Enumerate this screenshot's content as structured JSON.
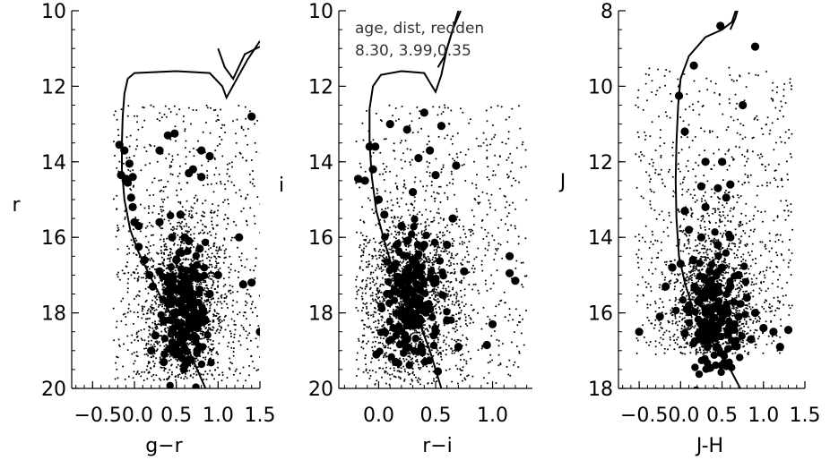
{
  "chart_data": [
    {
      "type": "scatter",
      "xlabel": "g−r",
      "ylabel": "r",
      "xlim": [
        -0.75,
        1.5
      ],
      "ylim": [
        20,
        10
      ],
      "y_inverted": true,
      "xticks": [
        -0.5,
        0.0,
        0.5,
        1.0,
        1.5
      ],
      "xtick_labels": [
        "−0.5",
        "0.0",
        "0.5",
        "1.0",
        "1.5"
      ],
      "xtick_merged_label": "−0.50.0",
      "yticks": [
        10,
        12,
        14,
        16,
        18,
        20
      ],
      "ytick_labels": [
        "10",
        "12",
        "14",
        "16",
        "18",
        "20"
      ],
      "point_color": "#000000",
      "isochrone": [
        [
          0.85,
          20.0
        ],
        [
          0.65,
          19.0
        ],
        [
          0.48,
          18.2
        ],
        [
          0.32,
          17.6
        ],
        [
          0.18,
          17.0
        ],
        [
          0.05,
          16.4
        ],
        [
          -0.05,
          15.8
        ],
        [
          -0.12,
          15.0
        ],
        [
          -0.15,
          14.2
        ],
        [
          -0.15,
          13.5
        ],
        [
          -0.14,
          12.8
        ],
        [
          -0.12,
          12.2
        ],
        [
          -0.08,
          11.8
        ],
        [
          0.0,
          11.65
        ],
        [
          0.5,
          11.6
        ],
        [
          0.9,
          11.65
        ],
        [
          1.05,
          12.0
        ],
        [
          1.1,
          12.3
        ],
        [
          1.2,
          11.9
        ],
        [
          1.35,
          11.3
        ],
        [
          1.5,
          10.8
        ]
      ],
      "isochrone_branch": [
        [
          1.0,
          11.0
        ],
        [
          1.08,
          11.5
        ],
        [
          1.18,
          11.8
        ],
        [
          1.32,
          11.15
        ],
        [
          1.5,
          10.95
        ]
      ],
      "members": [
        [
          -0.18,
          13.55
        ],
        [
          -0.12,
          13.7
        ],
        [
          -0.16,
          14.35
        ],
        [
          -0.1,
          14.45
        ],
        [
          -0.08,
          14.55
        ],
        [
          -0.06,
          14.05
        ],
        [
          -0.02,
          14.4
        ],
        [
          -0.04,
          14.95
        ],
        [
          -0.02,
          15.2
        ],
        [
          0.0,
          15.6
        ],
        [
          0.05,
          15.7
        ],
        [
          0.05,
          16.25
        ],
        [
          0.12,
          16.6
        ],
        [
          0.18,
          17.0
        ],
        [
          0.22,
          17.3
        ],
        [
          0.4,
          13.3
        ],
        [
          0.48,
          13.25
        ],
        [
          0.3,
          13.7
        ],
        [
          0.7,
          14.2
        ],
        [
          0.65,
          14.3
        ],
        [
          0.8,
          13.7
        ],
        [
          0.9,
          13.85
        ],
        [
          0.8,
          14.4
        ],
        [
          0.55,
          15.4
        ],
        [
          0.3,
          15.6
        ],
        [
          0.45,
          16.0
        ],
        [
          0.6,
          16.0
        ],
        [
          0.65,
          16.1
        ],
        [
          0.5,
          16.6
        ],
        [
          0.7,
          16.9
        ],
        [
          0.4,
          17.2
        ],
        [
          0.55,
          17.4
        ],
        [
          0.45,
          17.7
        ],
        [
          0.6,
          17.6
        ],
        [
          0.7,
          17.5
        ],
        [
          0.5,
          18.0
        ],
        [
          0.65,
          18.1
        ],
        [
          0.35,
          18.2
        ],
        [
          0.75,
          18.4
        ],
        [
          0.55,
          18.7
        ],
        [
          0.85,
          18.2
        ],
        [
          0.9,
          17.5
        ],
        [
          1.0,
          17.0
        ],
        [
          1.25,
          16.0
        ],
        [
          1.3,
          17.25
        ],
        [
          1.4,
          17.2
        ],
        [
          1.5,
          18.5
        ],
        [
          1.4,
          12.8
        ],
        [
          0.25,
          18.6
        ],
        [
          0.2,
          19.0
        ],
        [
          0.35,
          19.3
        ],
        [
          0.6,
          19.4
        ],
        [
          0.75,
          19.0
        ],
        [
          0.3,
          16.9
        ],
        [
          0.78,
          16.3
        ]
      ],
      "field_region": {
        "x": [
          -0.25,
          1.55
        ],
        "y": [
          12.5,
          19.8
        ],
        "peak": [
          0.6,
          17.8
        ]
      }
    },
    {
      "type": "scatter",
      "xlabel": "r−i",
      "ylabel": "i",
      "xlim": [
        -0.35,
        1.35
      ],
      "ylim": [
        20,
        10
      ],
      "y_inverted": true,
      "xticks": [
        0.0,
        0.5,
        1.0
      ],
      "xtick_labels": [
        "0.0",
        "0.5",
        "1.0"
      ],
      "yticks": [
        10,
        12,
        14,
        16,
        18,
        20
      ],
      "ytick_labels": [
        "10",
        "12",
        "14",
        "16",
        "18",
        "20"
      ],
      "point_color": "#000000",
      "annotation_lines": [
        "age, dist, redden",
        "8.30, 3.99,0.35"
      ],
      "isochrone": [
        [
          0.55,
          20.0
        ],
        [
          0.45,
          19.0
        ],
        [
          0.35,
          18.2
        ],
        [
          0.22,
          17.5
        ],
        [
          0.12,
          16.8
        ],
        [
          0.05,
          16.1
        ],
        [
          -0.02,
          15.3
        ],
        [
          -0.06,
          14.4
        ],
        [
          -0.08,
          13.5
        ],
        [
          -0.08,
          12.6
        ],
        [
          -0.05,
          12.0
        ],
        [
          0.02,
          11.7
        ],
        [
          0.2,
          11.6
        ],
        [
          0.4,
          11.65
        ],
        [
          0.45,
          11.9
        ],
        [
          0.5,
          12.15
        ],
        [
          0.55,
          11.7
        ],
        [
          0.6,
          11.0
        ],
        [
          0.7,
          10.0
        ]
      ],
      "isochrone_branch": [
        [
          0.52,
          11.5
        ],
        [
          0.58,
          11.2
        ],
        [
          0.65,
          10.5
        ],
        [
          0.72,
          10.0
        ]
      ],
      "members": [
        [
          -0.18,
          14.45
        ],
        [
          -0.12,
          14.5
        ],
        [
          -0.05,
          14.2
        ],
        [
          -0.08,
          13.6
        ],
        [
          -0.03,
          13.6
        ],
        [
          0.0,
          15.0
        ],
        [
          0.05,
          15.4
        ],
        [
          0.1,
          13.0
        ],
        [
          0.25,
          13.15
        ],
        [
          0.4,
          12.7
        ],
        [
          0.55,
          13.05
        ],
        [
          0.45,
          13.7
        ],
        [
          0.35,
          13.9
        ],
        [
          0.5,
          14.35
        ],
        [
          0.68,
          14.1
        ],
        [
          0.3,
          14.8
        ],
        [
          0.2,
          15.7
        ],
        [
          0.25,
          16.1
        ],
        [
          0.4,
          16.2
        ],
        [
          0.6,
          16.2
        ],
        [
          0.65,
          15.5
        ],
        [
          0.15,
          16.7
        ],
        [
          0.35,
          17.0
        ],
        [
          0.5,
          17.2
        ],
        [
          0.1,
          17.5
        ],
        [
          0.3,
          17.7
        ],
        [
          0.45,
          17.9
        ],
        [
          0.2,
          18.1
        ],
        [
          0.35,
          18.3
        ],
        [
          0.05,
          18.5
        ],
        [
          0.25,
          18.7
        ],
        [
          0.5,
          18.5
        ],
        [
          0.6,
          18.2
        ],
        [
          0.75,
          16.9
        ],
        [
          0.7,
          18.9
        ],
        [
          0.95,
          18.85
        ],
        [
          1.0,
          18.3
        ],
        [
          1.15,
          16.5
        ],
        [
          1.15,
          16.95
        ],
        [
          1.2,
          17.15
        ],
        [
          -0.02,
          19.1
        ],
        [
          0.15,
          19.3
        ],
        [
          0.52,
          19.55
        ],
        [
          0.38,
          19.0
        ]
      ],
      "field_region": {
        "x": [
          -0.2,
          1.3
        ],
        "y": [
          12.5,
          19.9
        ],
        "peak": [
          0.28,
          17.6
        ]
      }
    },
    {
      "type": "scatter",
      "xlabel": "J-H",
      "ylabel": "J",
      "xlim": [
        -0.75,
        1.5
      ],
      "ylim": [
        18,
        8
      ],
      "y_inverted": true,
      "xticks": [
        -0.5,
        0.0,
        0.5,
        1.0,
        1.5
      ],
      "xtick_labels": [
        "−0.5",
        "0.0",
        "0.5",
        "1.0",
        "1.5"
      ],
      "xtick_merged_label": "−0.50.0",
      "yticks": [
        8,
        10,
        12,
        14,
        16,
        18
      ],
      "ytick_labels": [
        "8",
        "10",
        "12",
        "14",
        "16",
        "18"
      ],
      "point_color": "#000000",
      "isochrone": [
        [
          0.72,
          18.0
        ],
        [
          0.6,
          17.5
        ],
        [
          0.45,
          17.0
        ],
        [
          0.3,
          16.5
        ],
        [
          0.15,
          15.9
        ],
        [
          0.05,
          15.2
        ],
        [
          -0.02,
          14.5
        ],
        [
          -0.05,
          13.5
        ],
        [
          -0.06,
          12.5
        ],
        [
          -0.05,
          11.5
        ],
        [
          -0.03,
          10.5
        ],
        [
          0.0,
          9.8
        ],
        [
          0.1,
          9.2
        ],
        [
          0.3,
          8.7
        ],
        [
          0.5,
          8.5
        ],
        [
          0.62,
          8.3
        ],
        [
          0.68,
          7.9
        ]
      ],
      "isochrone_branch": [
        [
          0.6,
          8.5
        ],
        [
          0.66,
          8.2
        ],
        [
          0.7,
          7.9
        ]
      ],
      "members": [
        [
          0.48,
          8.4
        ],
        [
          0.9,
          8.95
        ],
        [
          0.16,
          9.45
        ],
        [
          -0.02,
          10.25
        ],
        [
          0.75,
          10.5
        ],
        [
          0.05,
          11.2
        ],
        [
          0.3,
          12.0
        ],
        [
          0.5,
          12.0
        ],
        [
          0.25,
          12.65
        ],
        [
          0.45,
          12.7
        ],
        [
          0.6,
          12.6
        ],
        [
          0.55,
          12.95
        ],
        [
          0.05,
          13.3
        ],
        [
          0.3,
          13.2
        ],
        [
          0.1,
          13.8
        ],
        [
          0.25,
          14.0
        ],
        [
          0.45,
          14.2
        ],
        [
          0.6,
          14.0
        ],
        [
          0.15,
          14.6
        ],
        [
          0.0,
          14.7
        ],
        [
          -0.1,
          14.8
        ],
        [
          0.35,
          14.9
        ],
        [
          0.5,
          14.8
        ],
        [
          0.7,
          15.0
        ],
        [
          -0.18,
          15.3
        ],
        [
          0.2,
          15.4
        ],
        [
          0.4,
          15.5
        ],
        [
          0.6,
          15.3
        ],
        [
          0.8,
          15.6
        ],
        [
          0.1,
          15.8
        ],
        [
          0.3,
          16.0
        ],
        [
          0.5,
          15.9
        ],
        [
          0.7,
          16.1
        ],
        [
          0.9,
          16.0
        ],
        [
          0.25,
          16.3
        ],
        [
          0.45,
          16.4
        ],
        [
          0.65,
          16.3
        ],
        [
          1.0,
          16.4
        ],
        [
          1.12,
          16.5
        ],
        [
          1.3,
          16.45
        ],
        [
          -0.5,
          16.5
        ],
        [
          -0.25,
          16.1
        ],
        [
          0.05,
          16.55
        ],
        [
          1.2,
          16.9
        ],
        [
          0.85,
          16.7
        ]
      ],
      "field_region": {
        "x": [
          -0.55,
          1.35
        ],
        "y": [
          9.5,
          17.1
        ],
        "peak": [
          0.4,
          16.0
        ]
      }
    }
  ]
}
